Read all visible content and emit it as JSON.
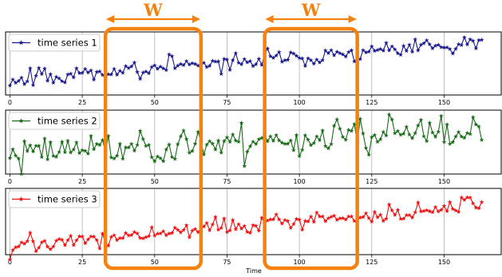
{
  "chart_data": {
    "type": "line",
    "xlabel": "Time",
    "xlim": [
      -1.5,
      170
    ],
    "xticks": [
      0,
      25,
      50,
      75,
      100,
      125,
      150
    ],
    "grid": "vertical",
    "legend_position": "top-left",
    "marker": "star",
    "series": [
      {
        "name": "time series 1",
        "color": "#1a1a8c",
        "panel": 1,
        "start": 0.0,
        "end": 0.74,
        "noise": 0.07,
        "seed": 11,
        "ylim": [
          -0.35,
          1.0
        ]
      },
      {
        "name": "time series 2",
        "color": "#1a6b1a",
        "panel": 2,
        "start": 0.18,
        "end": 0.6,
        "noise": 0.14,
        "seed": 23,
        "ylim": [
          -0.3,
          1.05
        ]
      },
      {
        "name": "time series 3",
        "color": "#ee1111",
        "panel": 3,
        "start": 0.02,
        "end": 0.92,
        "noise": 0.07,
        "seed": 37,
        "ylim": [
          -0.15,
          1.3
        ]
      }
    ],
    "n_points": 164
  },
  "windows": [
    {
      "label": "W",
      "x_start": 33,
      "x_end": 66
    },
    {
      "label": "W",
      "x_start": 88,
      "x_end": 120
    }
  ],
  "colors": {
    "window": "#f5820f",
    "grid": "#b0b0b0"
  }
}
